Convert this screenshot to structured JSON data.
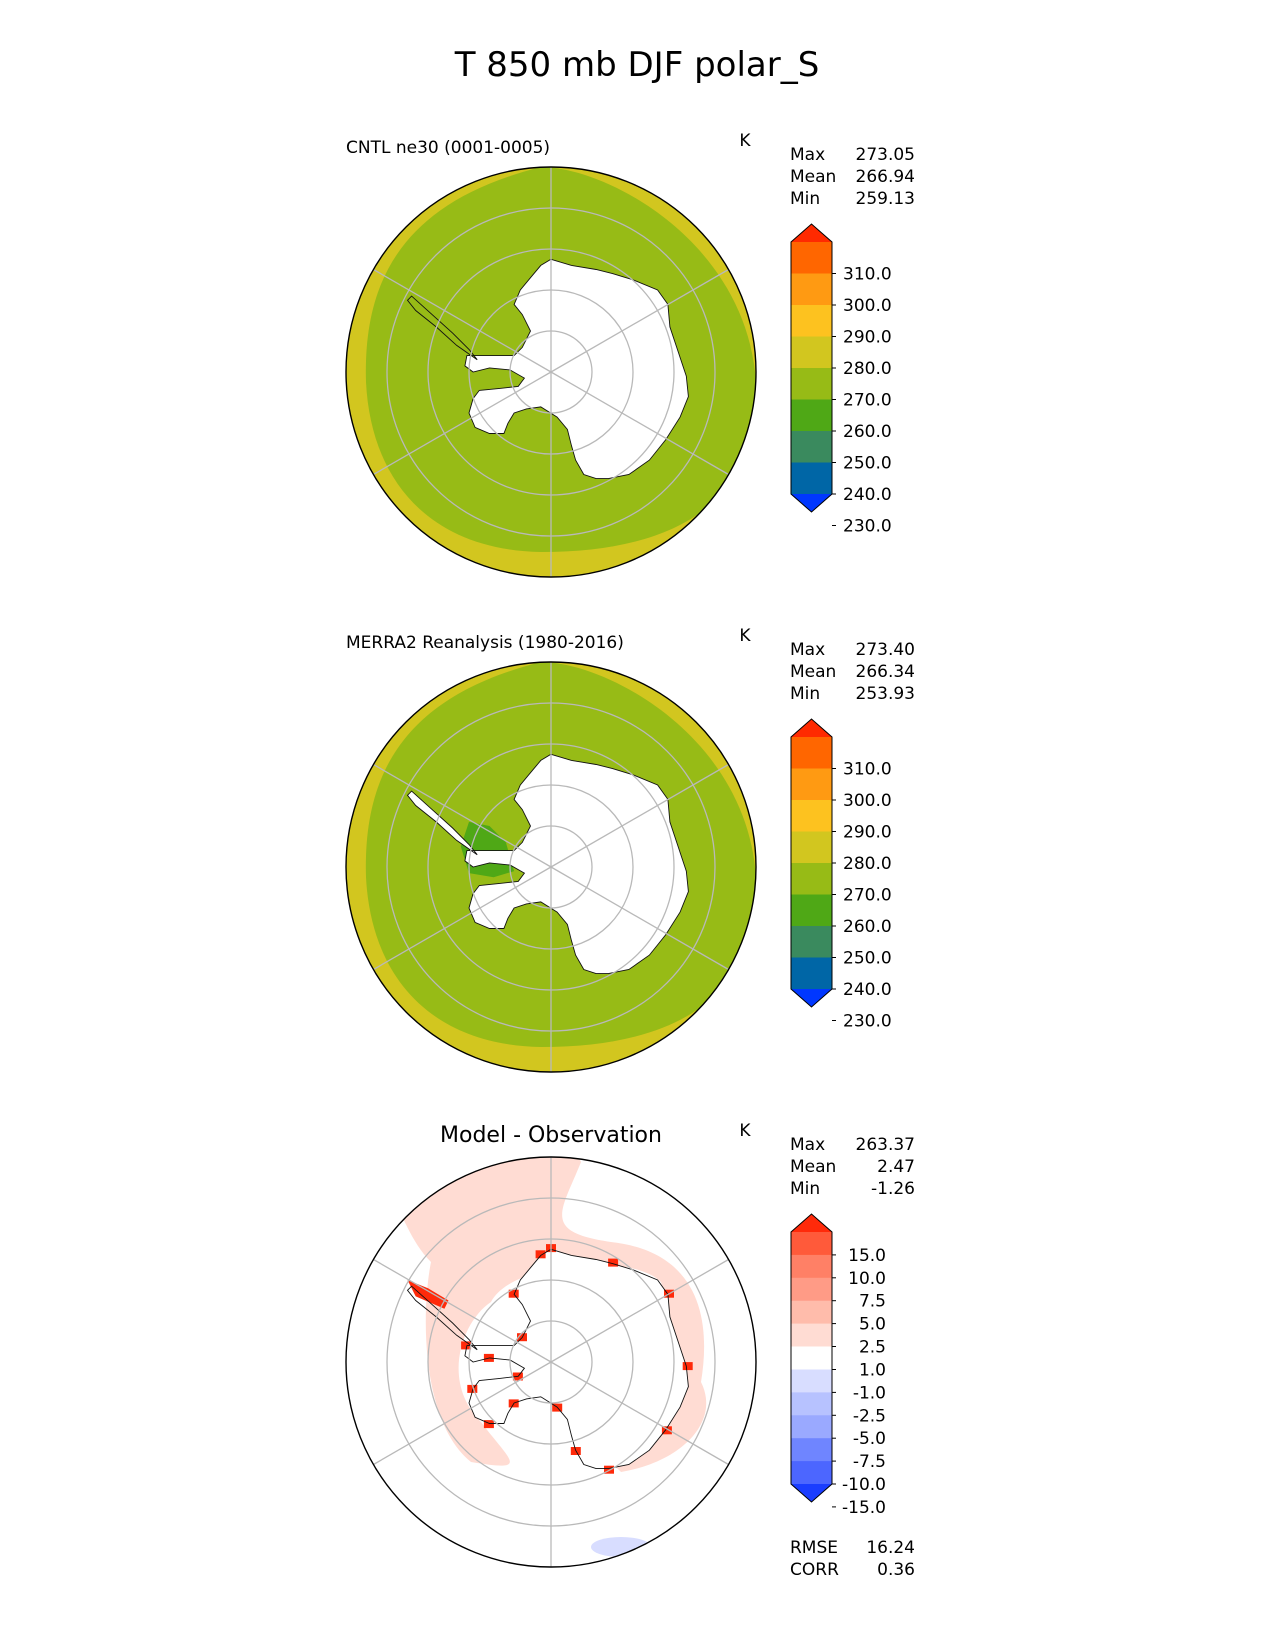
{
  "figure_title": "T 850 mb DJF polar_S",
  "chart_data": [
    {
      "type": "heatmap",
      "projection": "south-polar-stereographic",
      "title": "CNTL ne30 (0001-0005)",
      "units": "K",
      "stats": [
        {
          "label": "Max",
          "value": "273.05"
        },
        {
          "label": "Mean",
          "value": "266.94"
        },
        {
          "label": "Min",
          "value": "259.13"
        }
      ],
      "colorbar": {
        "levels": [
          "310.0",
          "300.0",
          "290.0",
          "280.0",
          "270.0",
          "260.0",
          "250.0",
          "240.0",
          "230.0"
        ],
        "colors": [
          "#ff2a00",
          "#ff6600",
          "#ff9a12",
          "#fdc21f",
          "#d2c61f",
          "#97bb16",
          "#4fa816",
          "#3a8a5e",
          "#0066a6",
          "#0037ff"
        ],
        "extend": "both"
      },
      "land_color": "#ffffff",
      "ocean_color": "#97bb16",
      "outer_band_color": "#d2c61f"
    },
    {
      "type": "heatmap",
      "projection": "south-polar-stereographic",
      "title": "MERRA2 Reanalysis (1980-2016)",
      "units": "K",
      "stats": [
        {
          "label": "Max",
          "value": "273.40"
        },
        {
          "label": "Mean",
          "value": "266.34"
        },
        {
          "label": "Min",
          "value": "253.93"
        }
      ],
      "colorbar": {
        "levels": [
          "310.0",
          "300.0",
          "290.0",
          "280.0",
          "270.0",
          "260.0",
          "250.0",
          "240.0",
          "230.0"
        ],
        "colors": [
          "#ff2a00",
          "#ff6600",
          "#ff9a12",
          "#fdc21f",
          "#d2c61f",
          "#97bb16",
          "#4fa816",
          "#3a8a5e",
          "#0066a6",
          "#0037ff"
        ],
        "extend": "both"
      },
      "land_color": "#ffffff",
      "ocean_color": "#97bb16",
      "outer_band_color": "#d2c61f",
      "cold_patch_color": "#4fa816"
    },
    {
      "type": "heatmap",
      "projection": "south-polar-stereographic",
      "title": "Model - Observation",
      "units": "K",
      "stats": [
        {
          "label": "Max",
          "value": "263.37"
        },
        {
          "label": "Mean",
          "value": "2.47"
        },
        {
          "label": "Min",
          "value": "-1.26"
        }
      ],
      "colorbar": {
        "levels": [
          "15.0",
          "10.0",
          "7.5",
          "5.0",
          "2.5",
          "1.0",
          "-1.0",
          "-2.5",
          "-5.0",
          "-7.5",
          "-10.0",
          "-15.0"
        ],
        "colors": [
          "#ff2a0a",
          "#ff5a3a",
          "#ff8066",
          "#ff9b86",
          "#ffbcab",
          "#ffdcd3",
          "#ffffff",
          "#d8ddff",
          "#b7c2ff",
          "#9aa9ff",
          "#6f85ff",
          "#4c66ff",
          "#1a3dff"
        ],
        "extend": "both"
      },
      "extra_stats": [
        {
          "label": "RMSE",
          "value": "16.24"
        },
        {
          "label": "CORR",
          "value": "0.36"
        }
      ],
      "positive_color": "#ffdcd3",
      "strong_positive_color": "#ff2a0a",
      "negative_color": "#d8ddff"
    }
  ]
}
